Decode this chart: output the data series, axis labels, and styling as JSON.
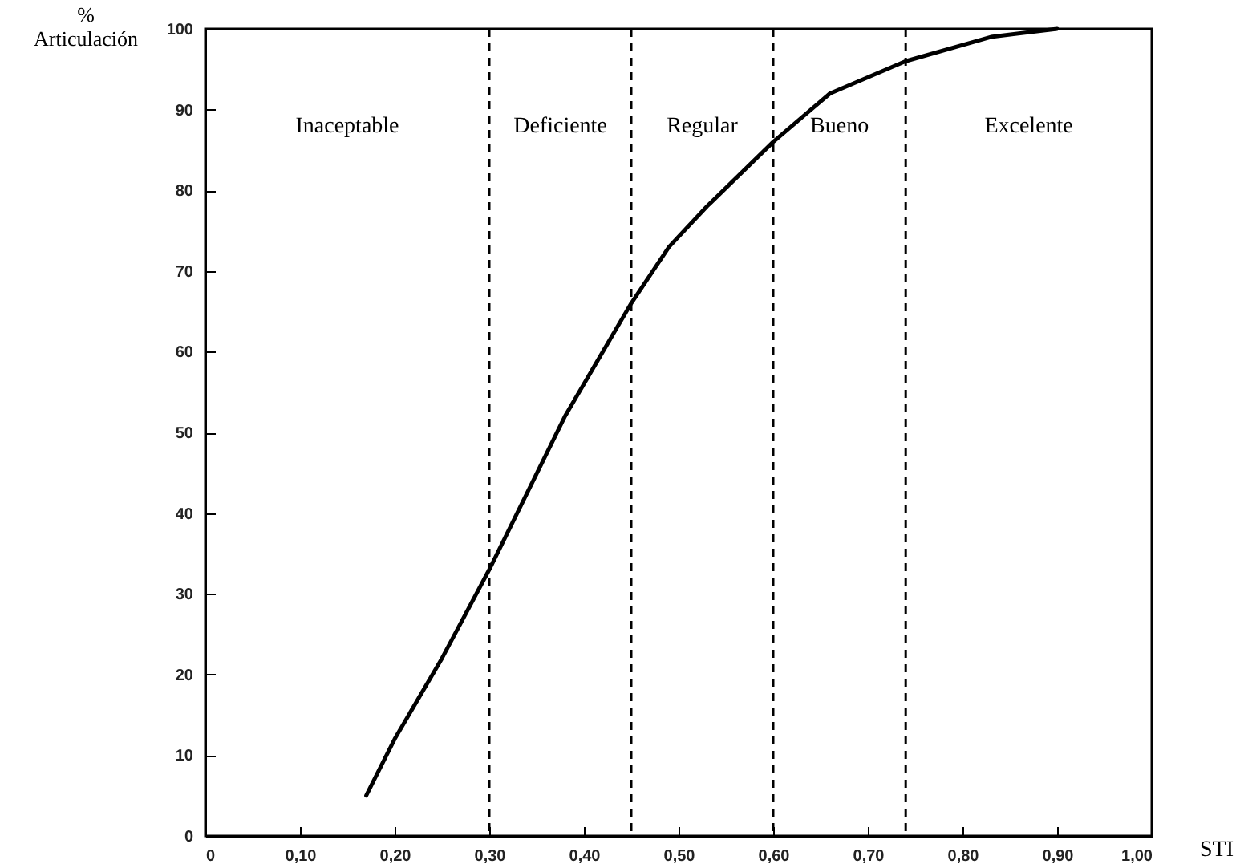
{
  "chart_data": {
    "type": "line",
    "xlabel": "STI",
    "ylabel": "%\nArticulación",
    "x": [
      0.17,
      0.2,
      0.25,
      0.3,
      0.38,
      0.45,
      0.49,
      0.53,
      0.6,
      0.66,
      0.74,
      0.83,
      0.9
    ],
    "series": [
      {
        "color": "#000000",
        "values": [
          5,
          12,
          22,
          33,
          52,
          66,
          73,
          78,
          86,
          92,
          96,
          99,
          100
        ]
      }
    ],
    "xlim": [
      0,
      1
    ],
    "ylim": [
      0,
      100
    ],
    "xticks": [
      0,
      {
        "value": 0.1,
        "label": "0,10"
      },
      {
        "value": 0.2,
        "label": "0,20"
      },
      {
        "value": 0.3,
        "label": "0,30"
      },
      {
        "value": 0.4,
        "label": "0,40"
      },
      {
        "value": 0.5,
        "label": "0,50"
      },
      {
        "value": 0.6,
        "label": "0,60"
      },
      {
        "value": 0.7,
        "label": "0,70"
      },
      {
        "value": 0.8,
        "label": "0,80"
      },
      {
        "value": 0.9,
        "label": "0,90"
      },
      {
        "value": 1,
        "label": "1,00"
      }
    ],
    "yticks": [
      0,
      10,
      20,
      30,
      40,
      50,
      60,
      70,
      80,
      90,
      100
    ],
    "ref_lines": [
      {
        "axis": "x",
        "value": 0.3,
        "line_style": "dashed"
      },
      {
        "axis": "x",
        "value": 0.45,
        "line_style": "dashed"
      },
      {
        "axis": "x",
        "value": 0.6,
        "line_style": "dashed"
      },
      {
        "axis": "x",
        "value": 0.74,
        "line_style": "dashed"
      }
    ],
    "annotations": [
      "Inaceptable",
      "Deficiente",
      "Regular",
      "Bueno",
      "Excelente"
    ],
    "grid": false,
    "marker": "none",
    "line_style": "solid"
  }
}
